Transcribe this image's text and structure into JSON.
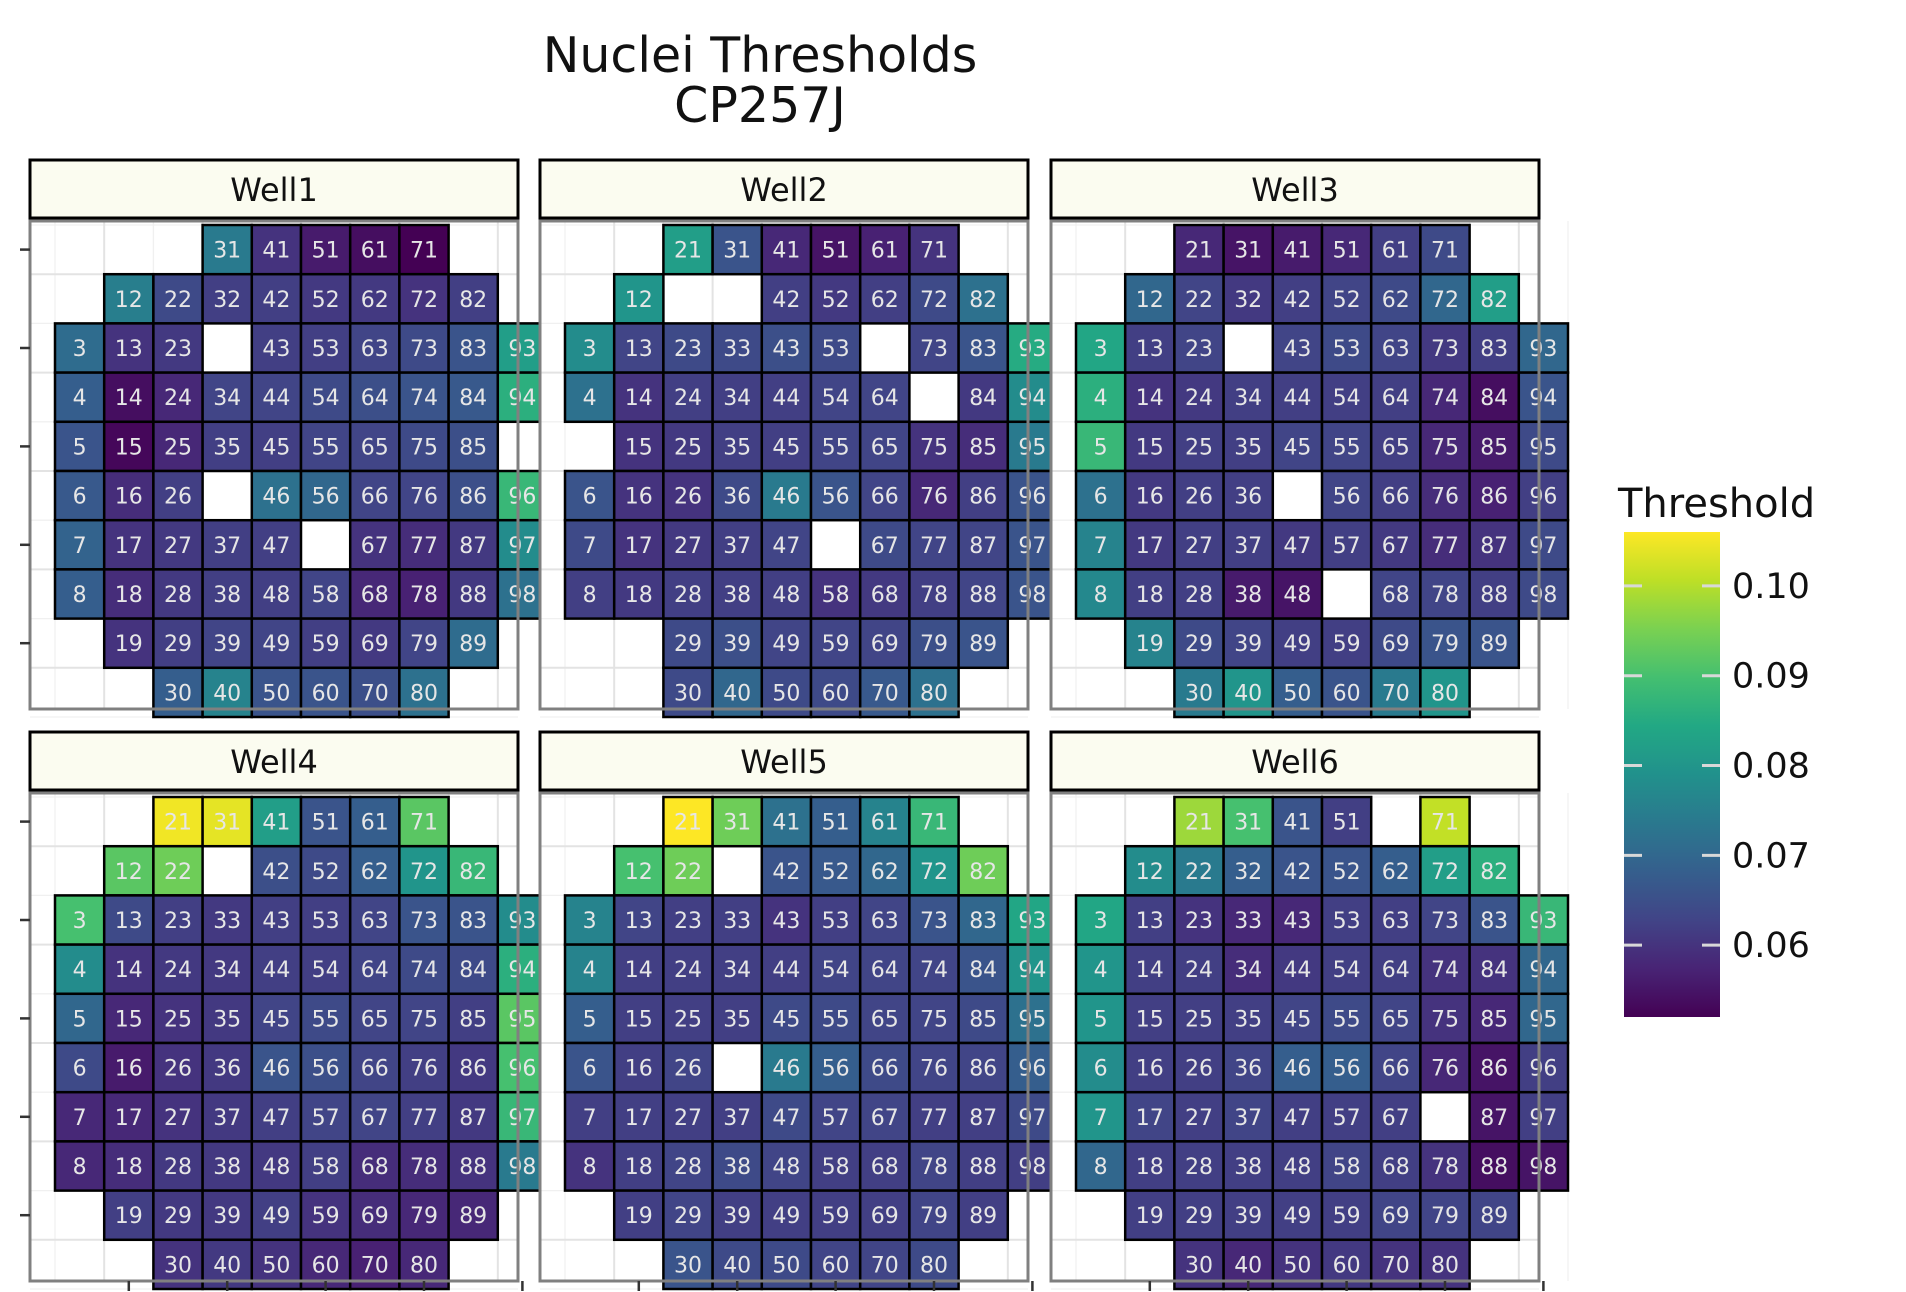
{
  "chart_data": {
    "type": "heatmap",
    "title": [
      "Nuclei Thresholds",
      "CP257J"
    ],
    "legend": {
      "title": "Threshold",
      "ticks": [
        0.06,
        0.07,
        0.08,
        0.09,
        0.1
      ],
      "tick_labels": [
        "0.06",
        "0.07",
        "0.08",
        "0.09",
        "0.10"
      ],
      "range": [
        0.052,
        0.106
      ],
      "colormap": "viridis",
      "placement": "right"
    },
    "grid": true,
    "facets": [
      {
        "name": "Well1",
        "sites": {
          "31": 0.074,
          "41": 0.06,
          "51": 0.056,
          "61": 0.054,
          "71": 0.052,
          "12": 0.075,
          "22": 0.064,
          "32": 0.062,
          "42": 0.062,
          "52": 0.061,
          "62": 0.061,
          "72": 0.06,
          "82": 0.062,
          "3": 0.071,
          "13": 0.06,
          "23": 0.061,
          "43": 0.062,
          "53": 0.062,
          "63": 0.063,
          "73": 0.064,
          "83": 0.066,
          "93": 0.082,
          "4": 0.068,
          "14": 0.054,
          "24": 0.058,
          "34": 0.063,
          "44": 0.063,
          "54": 0.064,
          "64": 0.065,
          "74": 0.066,
          "84": 0.067,
          "94": 0.086,
          "5": 0.066,
          "15": 0.053,
          "25": 0.058,
          "35": 0.062,
          "45": 0.062,
          "55": 0.063,
          "65": 0.063,
          "75": 0.064,
          "85": 0.065,
          "6": 0.067,
          "16": 0.059,
          "26": 0.062,
          "46": 0.072,
          "56": 0.07,
          "66": 0.063,
          "76": 0.063,
          "86": 0.065,
          "96": 0.088,
          "7": 0.069,
          "17": 0.06,
          "27": 0.061,
          "37": 0.062,
          "47": 0.062,
          "67": 0.06,
          "77": 0.059,
          "87": 0.061,
          "97": 0.078,
          "8": 0.068,
          "18": 0.059,
          "28": 0.061,
          "38": 0.062,
          "48": 0.062,
          "58": 0.063,
          "68": 0.058,
          "78": 0.057,
          "88": 0.061,
          "98": 0.072,
          "19": 0.06,
          "29": 0.062,
          "39": 0.063,
          "49": 0.063,
          "59": 0.062,
          "69": 0.061,
          "79": 0.063,
          "89": 0.071,
          "30": 0.068,
          "40": 0.076,
          "50": 0.066,
          "60": 0.066,
          "70": 0.065,
          "80": 0.072
        }
      },
      {
        "name": "Well2",
        "sites": {
          "21": 0.082,
          "31": 0.066,
          "41": 0.058,
          "51": 0.055,
          "61": 0.057,
          "71": 0.06,
          "12": 0.08,
          "42": 0.062,
          "52": 0.061,
          "62": 0.062,
          "72": 0.064,
          "82": 0.072,
          "3": 0.078,
          "13": 0.063,
          "23": 0.064,
          "33": 0.064,
          "43": 0.065,
          "53": 0.064,
          "73": 0.063,
          "83": 0.066,
          "93": 0.085,
          "4": 0.072,
          "14": 0.06,
          "24": 0.062,
          "34": 0.062,
          "44": 0.062,
          "54": 0.063,
          "64": 0.063,
          "84": 0.061,
          "94": 0.078,
          "15": 0.06,
          "25": 0.061,
          "35": 0.062,
          "45": 0.062,
          "55": 0.063,
          "65": 0.063,
          "75": 0.06,
          "85": 0.059,
          "95": 0.074,
          "6": 0.066,
          "16": 0.06,
          "26": 0.06,
          "36": 0.064,
          "46": 0.074,
          "56": 0.066,
          "66": 0.063,
          "76": 0.058,
          "86": 0.062,
          "96": 0.066,
          "7": 0.064,
          "17": 0.06,
          "27": 0.061,
          "37": 0.062,
          "47": 0.063,
          "67": 0.064,
          "77": 0.063,
          "87": 0.063,
          "97": 0.066,
          "8": 0.062,
          "18": 0.061,
          "28": 0.062,
          "38": 0.062,
          "48": 0.062,
          "58": 0.06,
          "68": 0.061,
          "78": 0.062,
          "88": 0.063,
          "98": 0.066,
          "29": 0.064,
          "39": 0.065,
          "49": 0.063,
          "59": 0.063,
          "69": 0.063,
          "79": 0.065,
          "89": 0.066,
          "30": 0.064,
          "40": 0.07,
          "50": 0.064,
          "60": 0.064,
          "70": 0.067,
          "80": 0.072
        }
      },
      {
        "name": "Well3",
        "sites": {
          "21": 0.058,
          "31": 0.055,
          "41": 0.056,
          "51": 0.058,
          "61": 0.062,
          "71": 0.064,
          "12": 0.07,
          "22": 0.063,
          "32": 0.061,
          "42": 0.062,
          "52": 0.063,
          "62": 0.064,
          "72": 0.07,
          "82": 0.082,
          "3": 0.084,
          "13": 0.062,
          "23": 0.063,
          "43": 0.063,
          "53": 0.064,
          "63": 0.063,
          "73": 0.061,
          "83": 0.062,
          "93": 0.07,
          "4": 0.086,
          "14": 0.06,
          "24": 0.061,
          "34": 0.062,
          "44": 0.062,
          "54": 0.062,
          "64": 0.062,
          "74": 0.058,
          "84": 0.054,
          "94": 0.066,
          "5": 0.088,
          "15": 0.061,
          "25": 0.062,
          "35": 0.062,
          "45": 0.063,
          "55": 0.063,
          "65": 0.062,
          "75": 0.058,
          "85": 0.056,
          "95": 0.064,
          "6": 0.072,
          "16": 0.061,
          "26": 0.062,
          "36": 0.062,
          "56": 0.063,
          "66": 0.062,
          "76": 0.059,
          "86": 0.057,
          "96": 0.062,
          "7": 0.076,
          "17": 0.061,
          "27": 0.062,
          "37": 0.062,
          "47": 0.061,
          "57": 0.062,
          "67": 0.061,
          "77": 0.059,
          "87": 0.06,
          "97": 0.064,
          "8": 0.077,
          "18": 0.062,
          "28": 0.062,
          "38": 0.056,
          "48": 0.055,
          "68": 0.063,
          "78": 0.063,
          "88": 0.062,
          "98": 0.064,
          "19": 0.076,
          "29": 0.064,
          "39": 0.063,
          "49": 0.062,
          "59": 0.062,
          "69": 0.064,
          "79": 0.066,
          "89": 0.066,
          "30": 0.074,
          "40": 0.08,
          "50": 0.068,
          "60": 0.066,
          "70": 0.074,
          "80": 0.08
        }
      },
      {
        "name": "Well4",
        "sites": {
          "21": 0.105,
          "31": 0.104,
          "41": 0.082,
          "51": 0.066,
          "61": 0.068,
          "71": 0.092,
          "12": 0.092,
          "22": 0.094,
          "42": 0.065,
          "52": 0.064,
          "62": 0.068,
          "72": 0.08,
          "82": 0.088,
          "3": 0.09,
          "13": 0.064,
          "23": 0.062,
          "33": 0.061,
          "43": 0.062,
          "53": 0.062,
          "63": 0.063,
          "73": 0.066,
          "83": 0.066,
          "93": 0.078,
          "4": 0.078,
          "14": 0.06,
          "24": 0.061,
          "34": 0.061,
          "44": 0.062,
          "54": 0.062,
          "64": 0.063,
          "74": 0.064,
          "84": 0.064,
          "94": 0.086,
          "5": 0.07,
          "15": 0.058,
          "25": 0.06,
          "35": 0.061,
          "45": 0.063,
          "55": 0.064,
          "65": 0.063,
          "75": 0.063,
          "85": 0.062,
          "95": 0.092,
          "6": 0.064,
          "16": 0.056,
          "26": 0.06,
          "36": 0.061,
          "46": 0.066,
          "56": 0.065,
          "66": 0.063,
          "76": 0.062,
          "86": 0.061,
          "96": 0.09,
          "7": 0.058,
          "17": 0.058,
          "27": 0.06,
          "37": 0.061,
          "47": 0.062,
          "57": 0.063,
          "67": 0.063,
          "77": 0.062,
          "87": 0.061,
          "97": 0.088,
          "8": 0.058,
          "18": 0.059,
          "28": 0.061,
          "38": 0.061,
          "48": 0.061,
          "58": 0.062,
          "68": 0.059,
          "78": 0.059,
          "88": 0.06,
          "98": 0.074,
          "19": 0.062,
          "29": 0.061,
          "39": 0.061,
          "49": 0.062,
          "59": 0.06,
          "69": 0.059,
          "79": 0.058,
          "89": 0.058,
          "30": 0.06,
          "40": 0.061,
          "50": 0.06,
          "60": 0.058,
          "70": 0.057,
          "80": 0.058
        }
      },
      {
        "name": "Well5",
        "sites": {
          "21": 0.106,
          "31": 0.094,
          "41": 0.072,
          "51": 0.068,
          "61": 0.076,
          "71": 0.088,
          "12": 0.09,
          "22": 0.094,
          "42": 0.066,
          "52": 0.067,
          "62": 0.07,
          "72": 0.08,
          "82": 0.094,
          "3": 0.076,
          "13": 0.063,
          "23": 0.062,
          "33": 0.062,
          "43": 0.06,
          "53": 0.062,
          "63": 0.063,
          "73": 0.066,
          "83": 0.07,
          "93": 0.084,
          "4": 0.076,
          "14": 0.062,
          "24": 0.062,
          "34": 0.062,
          "44": 0.062,
          "54": 0.063,
          "64": 0.063,
          "74": 0.063,
          "84": 0.066,
          "94": 0.08,
          "5": 0.068,
          "15": 0.062,
          "25": 0.062,
          "35": 0.062,
          "45": 0.064,
          "55": 0.064,
          "65": 0.063,
          "75": 0.063,
          "85": 0.064,
          "95": 0.072,
          "6": 0.066,
          "16": 0.062,
          "26": 0.063,
          "46": 0.074,
          "56": 0.068,
          "66": 0.064,
          "76": 0.063,
          "86": 0.063,
          "96": 0.068,
          "7": 0.062,
          "17": 0.062,
          "27": 0.062,
          "37": 0.062,
          "47": 0.064,
          "57": 0.063,
          "67": 0.063,
          "77": 0.062,
          "87": 0.062,
          "97": 0.064,
          "8": 0.06,
          "18": 0.062,
          "28": 0.063,
          "38": 0.064,
          "48": 0.063,
          "58": 0.062,
          "68": 0.062,
          "78": 0.063,
          "88": 0.062,
          "98": 0.062,
          "19": 0.062,
          "29": 0.063,
          "39": 0.062,
          "49": 0.062,
          "59": 0.062,
          "69": 0.062,
          "79": 0.063,
          "89": 0.062,
          "30": 0.066,
          "40": 0.064,
          "50": 0.064,
          "60": 0.063,
          "70": 0.063,
          "80": 0.064
        }
      },
      {
        "name": "Well6",
        "sites": {
          "21": 0.098,
          "31": 0.09,
          "41": 0.066,
          "51": 0.062,
          "71": 0.101,
          "12": 0.078,
          "22": 0.074,
          "32": 0.068,
          "42": 0.066,
          "52": 0.066,
          "62": 0.068,
          "72": 0.082,
          "82": 0.086,
          "3": 0.084,
          "13": 0.062,
          "23": 0.06,
          "33": 0.058,
          "43": 0.058,
          "53": 0.062,
          "63": 0.062,
          "73": 0.063,
          "83": 0.066,
          "93": 0.088,
          "4": 0.08,
          "14": 0.062,
          "24": 0.062,
          "34": 0.059,
          "44": 0.061,
          "54": 0.062,
          "64": 0.062,
          "74": 0.06,
          "84": 0.06,
          "94": 0.07,
          "5": 0.08,
          "15": 0.062,
          "25": 0.062,
          "35": 0.062,
          "45": 0.063,
          "55": 0.064,
          "65": 0.063,
          "75": 0.06,
          "85": 0.058,
          "95": 0.07,
          "6": 0.078,
          "16": 0.062,
          "26": 0.062,
          "36": 0.063,
          "46": 0.068,
          "56": 0.068,
          "66": 0.063,
          "76": 0.058,
          "86": 0.055,
          "96": 0.062,
          "7": 0.08,
          "17": 0.063,
          "27": 0.062,
          "37": 0.063,
          "47": 0.062,
          "57": 0.062,
          "67": 0.062,
          "87": 0.055,
          "97": 0.062,
          "8": 0.07,
          "18": 0.062,
          "28": 0.062,
          "38": 0.062,
          "48": 0.062,
          "58": 0.063,
          "68": 0.062,
          "78": 0.06,
          "88": 0.054,
          "98": 0.055,
          "19": 0.062,
          "29": 0.062,
          "39": 0.062,
          "49": 0.062,
          "59": 0.062,
          "69": 0.063,
          "79": 0.063,
          "89": 0.063,
          "30": 0.06,
          "40": 0.058,
          "50": 0.06,
          "60": 0.061,
          "70": 0.06,
          "80": 0.06
        }
      }
    ]
  }
}
